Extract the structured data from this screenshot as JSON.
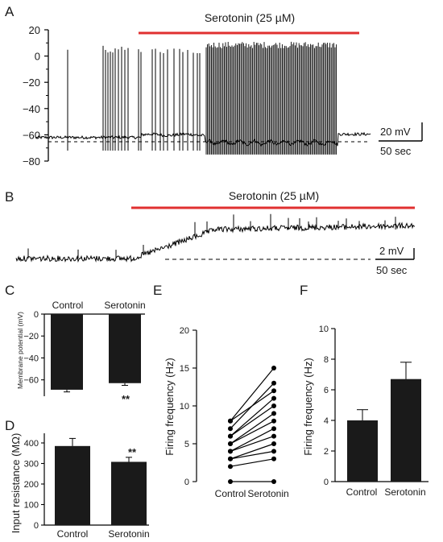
{
  "panels": {
    "a": {
      "letter": "A"
    },
    "b": {
      "letter": "B"
    },
    "c": {
      "letter": "C"
    },
    "d": {
      "letter": "D"
    },
    "e": {
      "letter": "E"
    },
    "f": {
      "letter": "F"
    }
  },
  "chart_data": [
    {
      "panel": "A",
      "type": "line",
      "description_free": true,
      "drug_label": "Serotonin (25 µM)",
      "y_ticks": [
        "20",
        "0",
        "−20",
        "−40",
        "−60",
        "−80"
      ],
      "ylim": [
        -80,
        20
      ],
      "baseline_mV": -62,
      "scale_bar": {
        "y": "20 mV",
        "x": "50 sec"
      },
      "colors": {
        "drug_bar": "#e03030",
        "trace": "#000000"
      }
    },
    {
      "panel": "B",
      "type": "line",
      "drug_label": "Serotonin (25 µM)",
      "scale_bar": {
        "y": "2 mV",
        "x": "50 sec"
      },
      "colors": {
        "drug_bar": "#e03030",
        "trace": "#000000"
      }
    },
    {
      "panel": "C",
      "type": "bar",
      "categories": [
        "Control",
        "Serotonin"
      ],
      "values": [
        -69,
        -63
      ],
      "errors": [
        2,
        2
      ],
      "ylabel": "Membrane potential (mV)",
      "y_ticks": [
        "0",
        "−20",
        "−40",
        "−60"
      ],
      "ylim": [
        -72,
        0
      ],
      "significance": "**"
    },
    {
      "panel": "D",
      "type": "bar",
      "categories": [
        "Control",
        "Serotonin"
      ],
      "values": [
        385,
        308
      ],
      "errors": [
        37,
        22
      ],
      "ylabel": "Input resistance (MΩ)",
      "y_ticks": [
        "400",
        "300",
        "200",
        "100",
        "0"
      ],
      "ylim": [
        0,
        440
      ],
      "significance": "**"
    },
    {
      "panel": "E",
      "type": "scatter",
      "categories": [
        "Control",
        "Serotonin"
      ],
      "pairs": [
        [
          0,
          0
        ],
        [
          2,
          3
        ],
        [
          3,
          4
        ],
        [
          3,
          5
        ],
        [
          4,
          6
        ],
        [
          4,
          7
        ],
        [
          5,
          8
        ],
        [
          5,
          9
        ],
        [
          6,
          10
        ],
        [
          6,
          11
        ],
        [
          7,
          13
        ],
        [
          8,
          15
        ],
        [
          8,
          12
        ]
      ],
      "ylabel": "Firing frequency (Hz)",
      "y_ticks": [
        "20",
        "15",
        "10",
        "5",
        "0"
      ],
      "ylim": [
        0,
        20
      ]
    },
    {
      "panel": "F",
      "type": "bar",
      "categories": [
        "Control",
        "Serotonin"
      ],
      "values": [
        4.0,
        6.7
      ],
      "errors": [
        0.7,
        1.1
      ],
      "ylabel": "Firing frequency (Hz)",
      "y_ticks": [
        "10",
        "8",
        "6",
        "4",
        "2",
        "0"
      ],
      "ylim": [
        0,
        10
      ]
    }
  ]
}
